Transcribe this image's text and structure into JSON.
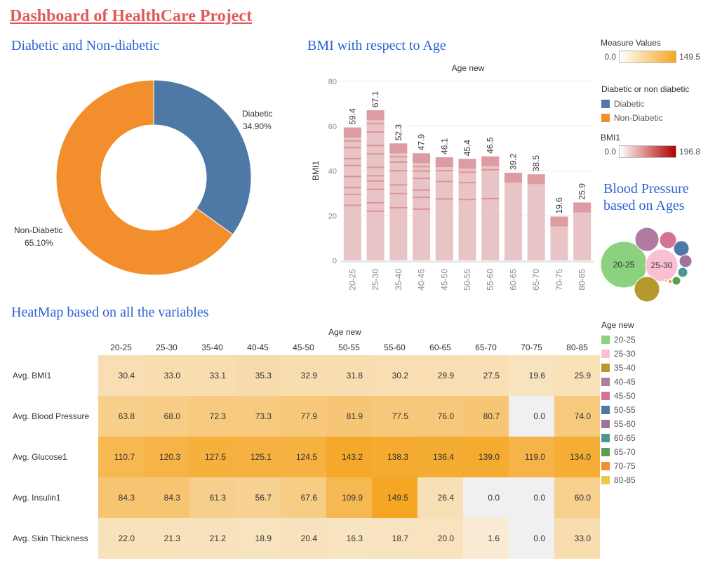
{
  "dashboard_title": "Dashboard of HealthCare Project",
  "sections": {
    "donut": "Diabetic and Non-diabetic",
    "bmi": "BMI with respect to Age",
    "bubbles": "Blood Pressure based on Ages",
    "heatmap": "HeatMap based on all the variables"
  },
  "legends": {
    "measure_values": {
      "title": "Measure Values",
      "min": "0.0",
      "max": "149.5",
      "color_from": "#ffffff",
      "color_to": "#f5a623"
    },
    "diabetic": {
      "title": "Diabetic or non diabetic",
      "items": [
        {
          "label": "Diabetic",
          "color": "#4e79a7"
        },
        {
          "label": "Non-Diabetic",
          "color": "#f28e2b"
        }
      ]
    },
    "bmi1": {
      "title": "BMI1",
      "min": "0.0",
      "max": "196.8",
      "color_from": "#ffffff",
      "color_to": "#b00000"
    },
    "age_new": {
      "title": "Age new",
      "items": [
        {
          "label": "20-25",
          "color": "#8cd17d"
        },
        {
          "label": "25-30",
          "color": "#fabfd2"
        },
        {
          "label": "35-40",
          "color": "#b6992d"
        },
        {
          "label": "40-45",
          "color": "#b07aa1"
        },
        {
          "label": "45-50",
          "color": "#d37295"
        },
        {
          "label": "50-55",
          "color": "#4e79a7"
        },
        {
          "label": "55-60",
          "color": "#a0719d"
        },
        {
          "label": "60-65",
          "color": "#499894"
        },
        {
          "label": "65-70",
          "color": "#59a14f"
        },
        {
          "label": "70-75",
          "color": "#f28e2b"
        },
        {
          "label": "80-85",
          "color": "#edc948"
        }
      ]
    }
  },
  "chart_data": [
    {
      "type": "pie",
      "donut": true,
      "slices": [
        {
          "label": "Diabetic",
          "value": 34.9,
          "display": "34.90%",
          "color": "#4e79a7"
        },
        {
          "label": "Non-Diabetic",
          "value": 65.1,
          "display": "65.10%",
          "color": "#f28e2b"
        }
      ]
    },
    {
      "type": "bar",
      "title": "Age new",
      "ylabel": "BMI1",
      "ylim": [
        0,
        80
      ],
      "yticks": [
        0,
        20,
        40,
        60,
        80
      ],
      "categories": [
        "20-25",
        "25-30",
        "35-40",
        "40-45",
        "45-50",
        "50-55",
        "55-60",
        "60-65",
        "65-70",
        "70-75",
        "80-85"
      ],
      "values": [
        59.4,
        67.1,
        52.3,
        47.9,
        46.1,
        45.4,
        46.5,
        39.2,
        38.5,
        19.6,
        25.9
      ],
      "value_labels": [
        "59.4",
        "67.1",
        "52.3",
        "47.9",
        "46.1",
        "45.4",
        "46.5",
        "39.2",
        "38.5",
        "19.6",
        "25.9"
      ]
    },
    {
      "type": "scatter",
      "subtype": "packed-bubbles",
      "labels_shown": [
        "20-25",
        "25-30"
      ]
    },
    {
      "type": "heatmap",
      "title": "Age new",
      "columns": [
        "20-25",
        "25-30",
        "35-40",
        "40-45",
        "45-50",
        "50-55",
        "55-60",
        "60-65",
        "65-70",
        "70-75",
        "80-85"
      ],
      "rows": [
        {
          "label": "Avg. BMI1",
          "values": [
            30.4,
            33.0,
            33.1,
            35.3,
            32.9,
            31.8,
            30.2,
            29.9,
            27.5,
            19.6,
            25.9
          ],
          "display": [
            "30.4",
            "33.0",
            "33.1",
            "35.3",
            "32.9",
            "31.8",
            "30.2",
            "29.9",
            "27.5",
            "19.6",
            "25.9"
          ]
        },
        {
          "label": "Avg. Blood Pressure",
          "values": [
            63.8,
            68.0,
            72.3,
            73.3,
            77.9,
            81.9,
            77.5,
            76.0,
            80.7,
            0.0,
            74.0
          ],
          "display": [
            "63.8",
            "68.0",
            "72.3",
            "73.3",
            "77.9",
            "81.9",
            "77.5",
            "76.0",
            "80.7",
            "0.0",
            "74.0"
          ]
        },
        {
          "label": "Avg. Glucose1",
          "values": [
            110.7,
            120.3,
            127.5,
            125.1,
            124.5,
            143.2,
            138.3,
            136.4,
            139.0,
            119.0,
            134.0
          ],
          "display": [
            "110.7",
            "120.3",
            "127.5",
            "125.1",
            "124.5",
            "143.2",
            "138.3",
            "136.4",
            "139.0",
            "119.0",
            "134.0"
          ]
        },
        {
          "label": "Avg. Insulin1",
          "values": [
            84.3,
            84.3,
            61.3,
            56.7,
            67.6,
            109.9,
            149.5,
            26.4,
            0.0,
            0.0,
            60.0
          ],
          "display": [
            "84.3",
            "84.3",
            "61.3",
            "56.7",
            "67.6",
            "109.9",
            "149.5",
            "26.4",
            "0.0",
            "0.0",
            "60.0"
          ]
        },
        {
          "label": "Avg. Skin Thickness",
          "values": [
            22.0,
            21.3,
            21.2,
            18.9,
            20.4,
            16.3,
            18.7,
            20.0,
            1.6,
            0.0,
            33.0
          ],
          "display": [
            "22.0",
            "21.3",
            "21.2",
            "18.9",
            "20.4",
            "16.3",
            "18.7",
            "20.0",
            "1.6",
            "0.0",
            "33.0"
          ]
        }
      ]
    }
  ]
}
